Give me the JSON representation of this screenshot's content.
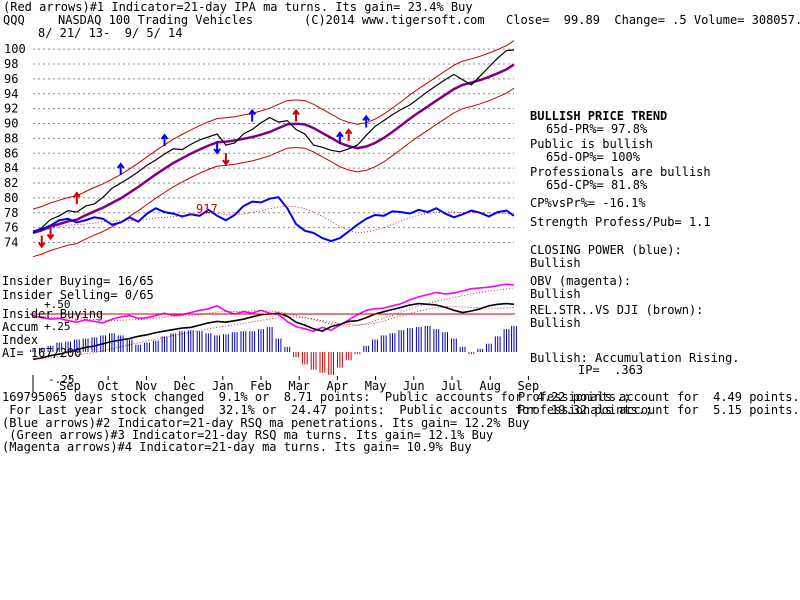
{
  "header": {
    "line1": "(Red arrows)#1 Indicator=21-day IPA ma turns. Its gain= 23.4% Buy",
    "ticker": "QQQ",
    "name": "NASDAQ 100 Trading Vehicles",
    "copyright": "(C)2014 www.tigersoft.com",
    "quote": "Close=  99.89  Change= .5 Volume= 308057.67",
    "dates": "8/ 21/ 13-  9/ 5/ 14"
  },
  "right_panel": {
    "trend_title": "BULLISH PRICE TREND",
    "pr": "65d-PR%= 97.8%",
    "public": "Public is bullish",
    "op": "65d-OP%= 100%",
    "pros": "Professionals are bullish",
    "cp": "65d-CP%= 81.8%",
    "cpvspr": "CP%vsPr%= -16.1%",
    "strength": "Strength Profess/Pub= 1.1",
    "closing_power": "CLOSING POWER (blue):",
    "closing_power_state": "Bullish",
    "obv": "OBV (magenta):",
    "obv_state": "Bullish",
    "relstr": "REL.STR..VS DJI (brown):",
    "relstr_state": "Bullish",
    "accum": "Bullish: Accumulation Rising.",
    "ip": "IP=  .363"
  },
  "left_panel": {
    "insider_buying": "Insider Buying= 16/65",
    "insider_selling": "Insider Selling= 0/65",
    "insider_buying2": "Insider Buying",
    "accum": "Accum",
    "index": "Index",
    "ai": "AI= 167/200",
    "v50": "+.50",
    "v25": "+.25",
    "vm25": "-.25",
    "marker_917": "917"
  },
  "footer": {
    "line1_left": "169795065 days stock changed  9.1% or  8.71 points:  Public accounts for  4.22 points.;",
    "line1_right": "Professionals account for  4.49 points.",
    "line2_left": " For Last year stock changed  32.1% or  24.47 points:  Public accounts for  19.32 points.;",
    "line2_right": "Professionals account for  5.15 points.",
    "line3": "(Blue arrows)#2 Indicator=21-day RSQ ma penetrations. Its gain= 12.2% Buy",
    "line4": " (Green arrows)#3 Indicator=21-day RSQ ma turns. Its gain= 12.1% Buy",
    "line5": "(Magenta arrows)#4 Indicator=21-day ma turns. Its gain= 10.9% Buy"
  },
  "colors": {
    "price": "#000000",
    "bands": "#cc0000",
    "ma": "#800080",
    "closing_power": "#0000ff",
    "obv": "#ff00ff",
    "relstr": "#000000",
    "accum_pos": "#0000aa",
    "accum_neg": "#cc0000",
    "grid": "#888888"
  },
  "chart_data": {
    "type": "line",
    "title": "NASDAQ 100 Trading Vehicles",
    "x_ticks": [
      "Sep",
      "Oct",
      "Nov",
      "Dec",
      "Jan",
      "Feb",
      "Mar",
      "Apr",
      "May",
      "Jun",
      "Jul",
      "Aug",
      "Sep"
    ],
    "y_ticks": [
      74,
      76,
      78,
      80,
      82,
      84,
      86,
      88,
      90,
      92,
      94,
      96,
      98,
      100
    ],
    "ylim": [
      73,
      101.5
    ],
    "x": [
      0,
      7,
      14,
      21,
      28,
      35,
      42,
      49,
      56,
      63,
      70,
      77,
      84,
      91,
      98,
      105,
      112,
      119,
      126,
      133,
      140,
      147,
      154,
      161,
      168,
      175,
      182,
      189,
      196,
      203,
      210,
      217,
      224,
      231,
      238,
      245,
      252,
      259,
      266,
      273,
      280,
      287,
      294,
      301,
      308,
      315,
      322,
      329,
      336,
      343,
      350,
      357,
      364,
      371,
      378,
      384
    ],
    "series": [
      {
        "name": "Price",
        "values": [
          75.3,
          76,
          77.1,
          77.6,
          78.3,
          78.1,
          78.9,
          79.2,
          80.1,
          81.3,
          82,
          82.7,
          83.5,
          84.4,
          85.1,
          85.9,
          86.6,
          86.5,
          87.2,
          87.8,
          88.2,
          88.6,
          87.1,
          87.4,
          88.6,
          89.2,
          90.1,
          90.8,
          90.2,
          90.4,
          89.2,
          88.6,
          87.1,
          86.8,
          86.4,
          86.2,
          86.6,
          87.1,
          88.4,
          89.6,
          90.4,
          91.2,
          91.9,
          92.5,
          93.4,
          94.3,
          95.1,
          95.9,
          96.6,
          95.9,
          95.2,
          96.4,
          97.6,
          98.8,
          99.8,
          99.89
        ]
      },
      {
        "name": "CLOSING POWER (blue):",
        "values": [
          75.5,
          75.8,
          76.3,
          77,
          77.2,
          76.7,
          77,
          77.4,
          77.2,
          76.4,
          76.7,
          77.4,
          76.8,
          77.9,
          78.6,
          78.1,
          77.9,
          77.5,
          77.8,
          77.6,
          78.4,
          77.6,
          77,
          77.7,
          78.9,
          79.5,
          79.4,
          79.9,
          80.1,
          78.6,
          76.5,
          75.6,
          75.3,
          74.6,
          74.2,
          74.6,
          75.5,
          76.4,
          77.2,
          77.7,
          77.6,
          78.2,
          78.1,
          77.9,
          78.4,
          78.1,
          78.6,
          77.9,
          77.4,
          77.8,
          78.3,
          78,
          77.5,
          78.1,
          78.3,
          77.6
        ]
      },
      {
        "name": "OBV (magenta):",
        "values": [
          64.2,
          63.9,
          63.7,
          63.8,
          63.5,
          63.3,
          63.6,
          63.4,
          63.2,
          63.7,
          64,
          64.2,
          63.8,
          63.9,
          64.2,
          64.5,
          64.2,
          64.3,
          64.6,
          64.9,
          65.1,
          65.5,
          64.8,
          64.4,
          64.7,
          64.5,
          64.9,
          64.5,
          64.3,
          63.4,
          62.7,
          62.4,
          62.1,
          62.6,
          62.2,
          62.9,
          63.6,
          64.3,
          64.9,
          65.1,
          65.2,
          65.5,
          65.8,
          66.3,
          66.7,
          67,
          67.3,
          67.1,
          67.2,
          67.5,
          67.8,
          67.9,
          68,
          68.2,
          68.4,
          68.3
        ]
      },
      {
        "name": "REL.STR..VS DJI (brown):",
        "values": [
          58.3,
          58.5,
          58.8,
          59,
          59.3,
          59.6,
          59.9,
          60.1,
          60.4,
          60.7,
          60.9,
          61.1,
          61.4,
          61.6,
          61.9,
          62.1,
          62.3,
          62.5,
          62.6,
          62.9,
          63.2,
          63.4,
          63.3,
          63.5,
          63.7,
          64,
          64.3,
          64.4,
          64.5,
          64.1,
          63.3,
          62.9,
          62.4,
          62.1,
          62.7,
          63,
          63.4,
          63.5,
          63.9,
          64.4,
          64.7,
          65,
          65.3,
          65.6,
          65.8,
          65.7,
          65.6,
          65.3,
          64.9,
          64.6,
          64.8,
          65.1,
          65.5,
          65.7,
          65.8,
          65.7
        ]
      }
    ],
    "accumulation_index": {
      "ylim": [
        -0.25,
        0.5
      ],
      "values": [
        0.02,
        0.04,
        0.06,
        0.09,
        0.1,
        0.12,
        0.13,
        0.14,
        0.16,
        0.18,
        0.16,
        0.12,
        0.07,
        0.09,
        0.11,
        0.15,
        0.18,
        0.2,
        0.21,
        0.2,
        0.18,
        0.16,
        0.17,
        0.19,
        0.2,
        0.2,
        0.22,
        0.24,
        0.13,
        0.05,
        -0.05,
        -0.12,
        -0.17,
        -0.2,
        -0.22,
        -0.15,
        -0.08,
        -0.02,
        0.06,
        0.12,
        0.16,
        0.18,
        0.21,
        0.23,
        0.24,
        0.25,
        0.22,
        0.19,
        0.13,
        0.05,
        -0.02,
        0.03,
        0.08,
        0.15,
        0.22,
        0.25
      ]
    }
  }
}
